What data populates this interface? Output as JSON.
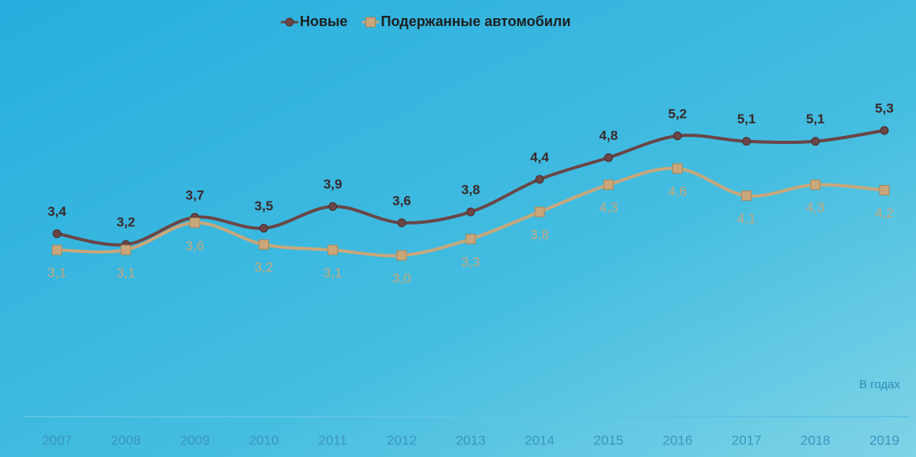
{
  "chart_data": {
    "type": "line",
    "categories": [
      "2007",
      "2008",
      "2009",
      "2010",
      "2011",
      "2012",
      "2013",
      "2014",
      "2015",
      "2016",
      "2017",
      "2018",
      "2019"
    ],
    "series": [
      {
        "name": "Новые",
        "color": "#6a4646",
        "marker": "circle",
        "values": [
          3.4,
          3.2,
          3.7,
          3.5,
          3.9,
          3.6,
          3.8,
          4.4,
          4.8,
          5.2,
          5.1,
          5.1,
          5.3
        ],
        "value_labels": [
          "3,4",
          "3,2",
          "3,7",
          "3,5",
          "3,9",
          "3,6",
          "3,8",
          "4,4",
          "4,8",
          "5,2",
          "5,1",
          "5,1",
          "5,3"
        ]
      },
      {
        "name": "Подержанные автомобили",
        "color": "#c9a77a",
        "marker": "square",
        "values": [
          3.1,
          3.1,
          3.6,
          3.2,
          3.1,
          3.0,
          3.3,
          3.8,
          4.3,
          4.6,
          4.1,
          4.3,
          4.2
        ],
        "value_labels": [
          "3,1",
          "3,1",
          "3,6",
          "3,2",
          "3,1",
          "3,0",
          "3,3",
          "3,8",
          "4,3",
          "4,6",
          "4,1",
          "4,3",
          "4,2"
        ]
      }
    ],
    "annotation": "В годах",
    "legend": "top"
  }
}
